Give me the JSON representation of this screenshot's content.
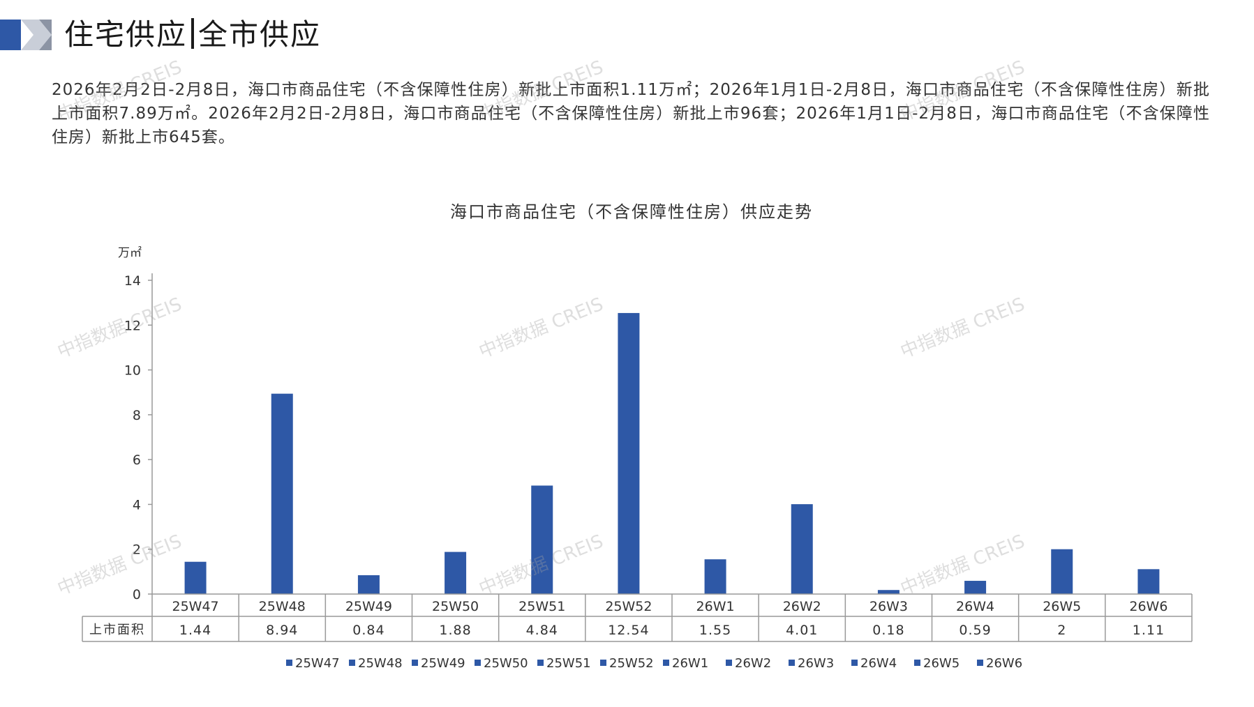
{
  "header": {
    "title_left": "住宅供应",
    "title_right": "全市供应"
  },
  "summary": "2026年2月2日-2月8日，海口市商品住宅（不含保障性住房）新批上市面积1.11万㎡；2026年1月1日-2月8日，海口市商品住宅（不含保障性住房）新批上市面积7.89万㎡。2026年2月2日-2月8日，海口市商品住宅（不含保障性住房）新批上市96套；2026年1月1日-2月8日，海口市商品住宅（不含保障性住房）新批上市645套。",
  "watermark": "中指数据 CREIS",
  "colors": {
    "bar": "#2E58A6",
    "grid": "#999999",
    "text": "#333333"
  },
  "chart_data": {
    "type": "bar",
    "title": "海口市商品住宅（不含保障性住房）供应走势",
    "ylabel": "万㎡",
    "ylim": [
      0,
      14
    ],
    "yticks": [
      0,
      2,
      4,
      6,
      8,
      10,
      12,
      14
    ],
    "categories": [
      "25W47",
      "25W48",
      "25W49",
      "25W50",
      "25W51",
      "25W52",
      "26W1",
      "26W2",
      "26W3",
      "26W4",
      "26W5",
      "26W6"
    ],
    "series": [
      {
        "name": "上市面积",
        "values": [
          1.44,
          8.94,
          0.84,
          1.88,
          4.84,
          12.54,
          1.55,
          4.01,
          0.18,
          0.59,
          2,
          1.11
        ]
      }
    ],
    "value_labels": [
      "1.44",
      "8.94",
      "0.84",
      "1.88",
      "4.84",
      "12.54",
      "1.55",
      "4.01",
      "0.18",
      "0.59",
      "2",
      "1.11"
    ],
    "legend_placement": "bottom",
    "data_table": true
  }
}
